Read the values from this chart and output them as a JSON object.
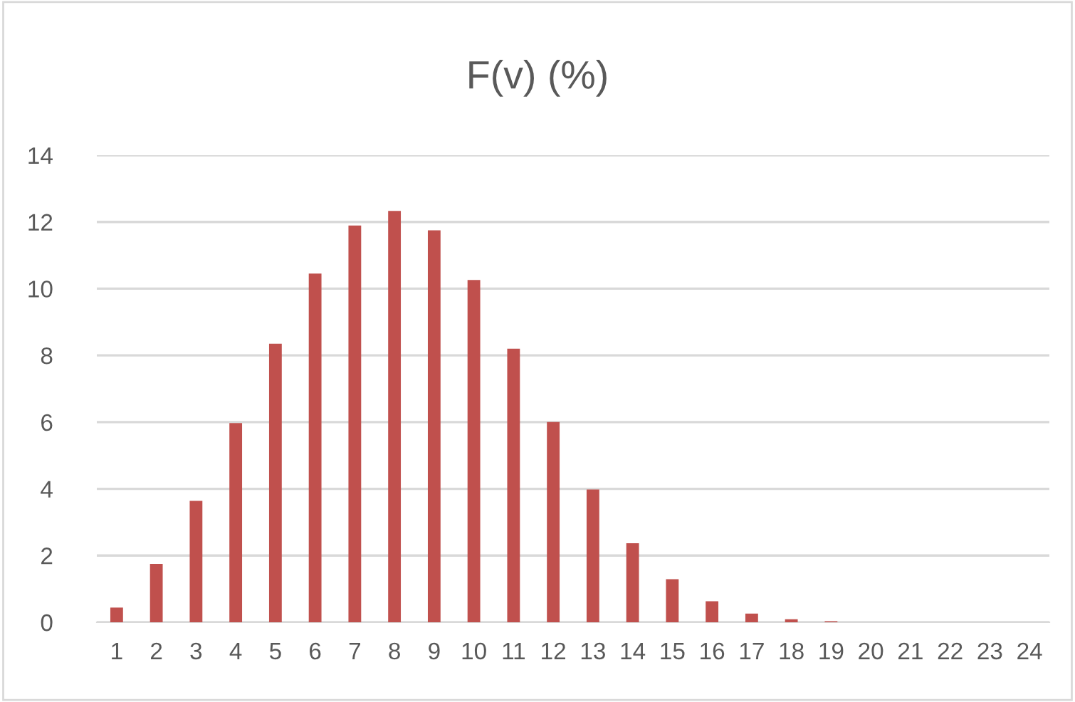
{
  "chart_data": {
    "type": "bar",
    "title": "F(v) (%)",
    "categories": [
      "1",
      "2",
      "3",
      "4",
      "5",
      "6",
      "7",
      "8",
      "9",
      "10",
      "11",
      "12",
      "13",
      "14",
      "15",
      "16",
      "17",
      "18",
      "19",
      "20",
      "21",
      "22",
      "23",
      "24"
    ],
    "values": [
      0.44,
      1.75,
      3.64,
      5.97,
      8.35,
      10.45,
      11.89,
      12.33,
      11.75,
      10.26,
      8.2,
      6.0,
      3.98,
      2.37,
      1.29,
      0.63,
      0.26,
      0.09,
      0.03,
      0,
      0,
      0,
      0,
      0
    ],
    "color": "#c0504d",
    "ylim": [
      0,
      14
    ],
    "yticks": [
      0,
      2,
      4,
      6,
      8,
      10,
      12,
      14
    ],
    "grid": "y"
  }
}
